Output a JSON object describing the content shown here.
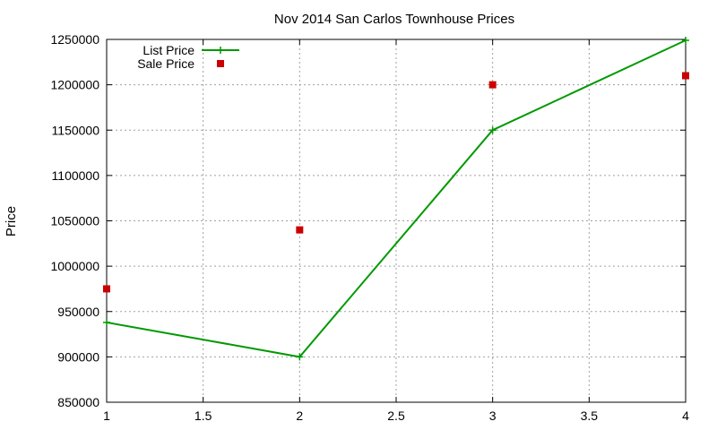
{
  "chart_data": {
    "type": "line",
    "title": "Nov 2014 San Carlos Townhouse Prices",
    "xlabel": "",
    "ylabel": "Price",
    "xlim": [
      1,
      4
    ],
    "ylim": [
      850000,
      1250000
    ],
    "x_ticks": [
      "1",
      "1.5",
      "2",
      "2.5",
      "3",
      "3.5",
      "4"
    ],
    "y_ticks": [
      "850000",
      "900000",
      "950000",
      "1000000",
      "1050000",
      "1100000",
      "1150000",
      "1200000",
      "1250000"
    ],
    "grid": true,
    "legend_position": "top-left",
    "series": [
      {
        "name": "List Price",
        "style": "line-points",
        "marker": "plus",
        "color": "#009900",
        "x": [
          1,
          2,
          3,
          4
        ],
        "y": [
          938000,
          900000,
          1150000,
          1249000
        ]
      },
      {
        "name": "Sale Price",
        "style": "points",
        "marker": "square",
        "color": "#cc0000",
        "x": [
          1,
          2,
          3,
          4
        ],
        "y": [
          975000,
          1040000,
          1200000,
          1210000
        ]
      }
    ]
  }
}
